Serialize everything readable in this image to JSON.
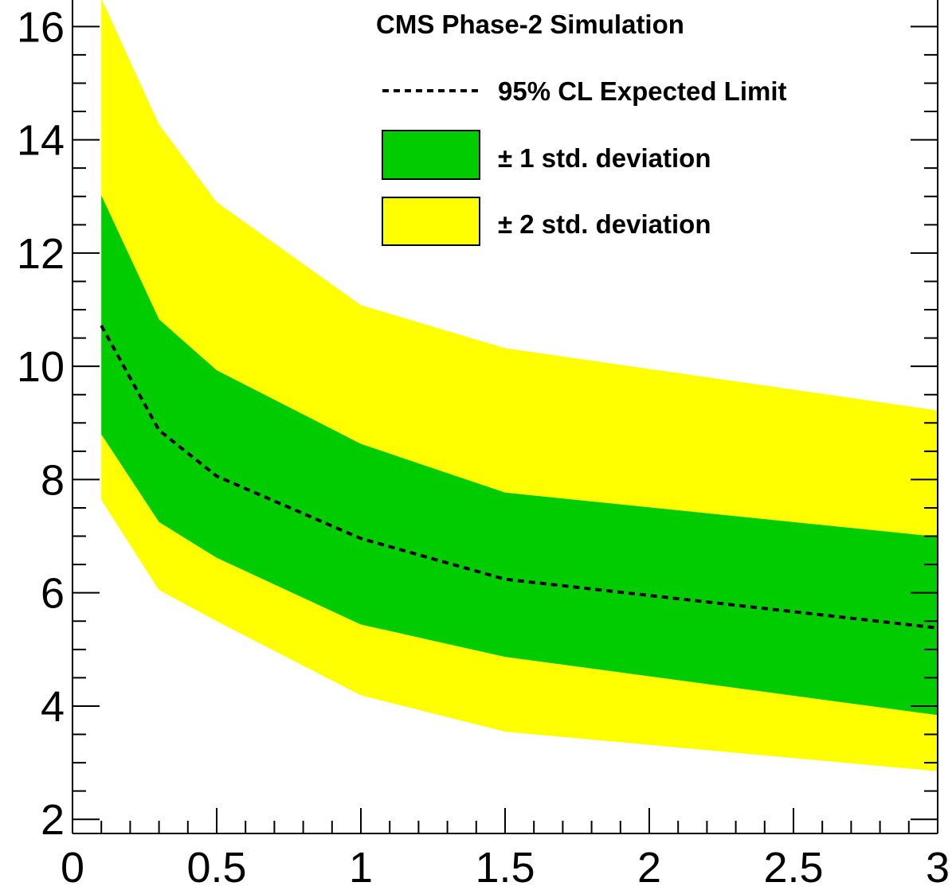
{
  "chart_data": {
    "type": "line",
    "title": "CMS Phase-2 Simulation",
    "xlabel": "",
    "ylabel": "",
    "xlim": [
      0,
      3
    ],
    "ylim": [
      1.75,
      16.75
    ],
    "x_ticks": [
      "0",
      "0.5",
      "1",
      "1.5",
      "2",
      "2.5",
      "3"
    ],
    "y_ticks": [
      "2",
      "4",
      "6",
      "8",
      "10",
      "12",
      "14",
      "16"
    ],
    "x": [
      0.1,
      0.3,
      0.5,
      1.0,
      1.5,
      3.0
    ],
    "series": [
      {
        "name": "95% CL Expected Limit",
        "values": [
          10.72,
          8.87,
          8.06,
          6.96,
          6.24,
          5.38
        ]
      },
      {
        "name": "± 1 std. deviation",
        "lower": [
          8.8,
          7.25,
          6.62,
          5.44,
          4.87,
          3.84
        ],
        "upper": [
          13.02,
          10.83,
          9.93,
          8.63,
          7.77,
          6.99
        ]
      },
      {
        "name": "± 2 std. deviation",
        "lower": [
          7.64,
          6.05,
          5.5,
          4.19,
          3.55,
          2.85
        ],
        "upper": [
          16.5,
          14.27,
          12.9,
          11.08,
          10.32,
          9.22
        ]
      }
    ],
    "legend_position": "top-right",
    "colors": {
      "one_sigma": "#00cc00",
      "two_sigma": "#ffff00",
      "median": "#000000"
    }
  },
  "legend": {
    "title": "CMS Phase-2 Simulation",
    "expected": "95% CL Expected Limit",
    "one_sigma": "± 1 std. deviation",
    "two_sigma": "± 2 std. deviation"
  }
}
